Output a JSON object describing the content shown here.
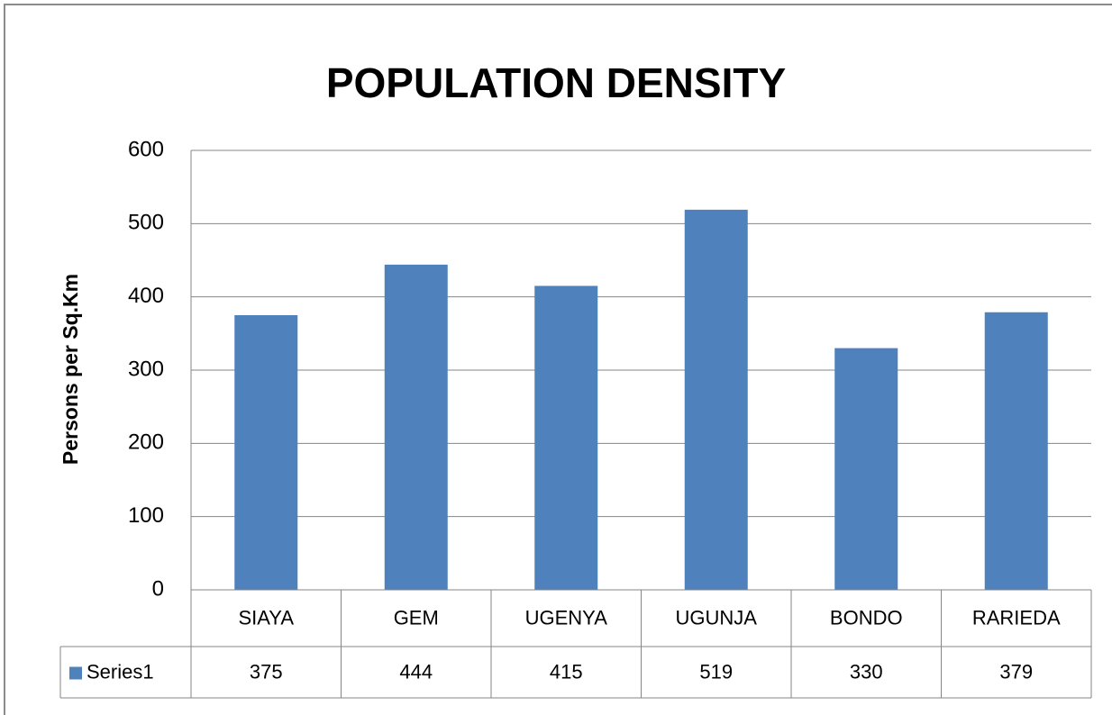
{
  "chart_data": {
    "type": "bar",
    "title": "POPULATION DENSITY",
    "y_label": "Persons per Sq.Km",
    "categories": [
      "SIAYA",
      "GEM",
      "UGENYA",
      "UGUNJA",
      "BONDO",
      "RARIEDA"
    ],
    "series": [
      {
        "name": "Series1",
        "color": "#4f81bd",
        "values": [
          375,
          444,
          415,
          519,
          330,
          379
        ]
      }
    ],
    "ylim": [
      0,
      600
    ],
    "yticks": [
      0,
      100,
      200,
      300,
      400,
      500,
      600
    ],
    "grid": true,
    "data_table": true
  }
}
